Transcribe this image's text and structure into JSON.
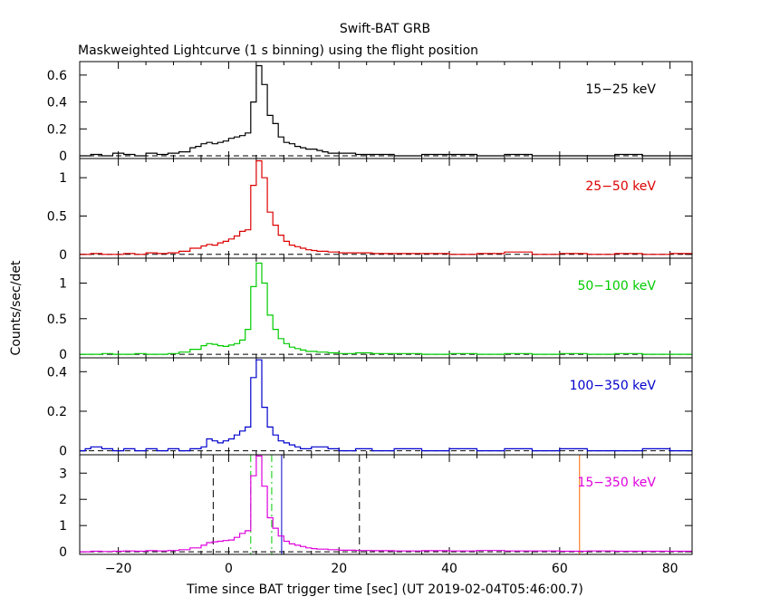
{
  "figure": {
    "title": "Swift-BAT GRB",
    "subtitle": "Maskweighted Lightcurve (1 s binning) using the flight position",
    "xlabel": "Time since BAT trigger time [sec] (UT 2019-02-04T05:46:00.7)",
    "ylabel": "Counts/sec/det"
  },
  "chart_data": [
    {
      "type": "line",
      "name": "15-25 keV",
      "label": "15−25 keV",
      "color": "#000000",
      "xlim": [
        -27,
        84
      ],
      "ylim": [
        -0.02,
        0.7
      ],
      "yticks": [
        {
          "v": 0,
          "label": "0"
        },
        {
          "v": 0.2,
          "label": "0.2"
        },
        {
          "v": 0.4,
          "label": "0.4"
        },
        {
          "v": 0.6,
          "label": "0.6"
        }
      ],
      "x": [
        -27,
        -25,
        -23,
        -21,
        -19,
        -17,
        -15,
        -13,
        -11,
        -9,
        -7,
        -6,
        -5,
        -4,
        -3,
        -2,
        -1,
        0,
        1,
        2,
        3,
        4,
        5,
        6,
        7,
        8,
        9,
        10,
        11,
        12,
        13,
        14,
        15,
        16,
        17,
        18,
        20,
        23,
        26,
        30,
        35,
        40,
        45,
        50,
        55,
        60,
        65,
        70,
        75,
        80,
        84
      ],
      "y": [
        0.0,
        0.01,
        0.0,
        0.02,
        0.01,
        0.0,
        0.02,
        0.01,
        0.02,
        0.03,
        0.06,
        0.07,
        0.09,
        0.1,
        0.09,
        0.1,
        0.11,
        0.13,
        0.14,
        0.15,
        0.17,
        0.4,
        0.67,
        0.53,
        0.3,
        0.24,
        0.14,
        0.1,
        0.09,
        0.07,
        0.06,
        0.05,
        0.05,
        0.04,
        0.03,
        0.02,
        0.02,
        0.01,
        0.01,
        0.0,
        0.01,
        0.01,
        0.0,
        0.01,
        0.0,
        0.0,
        0.0,
        0.01,
        0.0,
        0.0,
        0.0
      ]
    },
    {
      "type": "line",
      "name": "25-50 keV",
      "label": "25−50 keV",
      "color": "#dd0000",
      "xlim": [
        -27,
        84
      ],
      "ylim": [
        -0.05,
        1.25
      ],
      "yticks": [
        {
          "v": 0,
          "label": "0"
        },
        {
          "v": 0.5,
          "label": "0.5"
        },
        {
          "v": 1,
          "label": "1"
        }
      ],
      "x": [
        -27,
        -25,
        -23,
        -21,
        -19,
        -17,
        -15,
        -13,
        -11,
        -9,
        -7,
        -5,
        -4,
        -3,
        -2,
        -1,
        0,
        1,
        2,
        3,
        4,
        5,
        6,
        7,
        8,
        9,
        10,
        11,
        12,
        13,
        14,
        15,
        16,
        18,
        20,
        23,
        26,
        30,
        35,
        40,
        45,
        50,
        55,
        60,
        65,
        70,
        75,
        80,
        84
      ],
      "y": [
        0.0,
        0.01,
        0.0,
        0.0,
        0.01,
        0.0,
        0.02,
        0.01,
        0.02,
        0.04,
        0.08,
        0.11,
        0.13,
        0.12,
        0.15,
        0.17,
        0.2,
        0.24,
        0.3,
        0.32,
        0.9,
        1.22,
        1.0,
        0.55,
        0.38,
        0.25,
        0.17,
        0.12,
        0.1,
        0.08,
        0.06,
        0.05,
        0.04,
        0.03,
        0.02,
        0.02,
        0.01,
        0.01,
        0.01,
        0.0,
        0.01,
        0.03,
        0.0,
        0.01,
        0.0,
        0.01,
        0.0,
        0.01,
        0.0
      ]
    },
    {
      "type": "line",
      "name": "50-100 keV",
      "label": "50−100 keV",
      "color": "#00cc00",
      "xlim": [
        -27,
        84
      ],
      "ylim": [
        -0.05,
        1.35
      ],
      "yticks": [
        {
          "v": 0,
          "label": "0"
        },
        {
          "v": 0.5,
          "label": "0.5"
        },
        {
          "v": 1,
          "label": "1"
        }
      ],
      "x": [
        -27,
        -25,
        -23,
        -21,
        -19,
        -17,
        -15,
        -13,
        -11,
        -9,
        -7,
        -5,
        -4,
        -3,
        -2,
        -1,
        0,
        1,
        2,
        3,
        4,
        5,
        6,
        7,
        8,
        9,
        10,
        11,
        12,
        13,
        14,
        16,
        18,
        20,
        23,
        26,
        30,
        35,
        40,
        45,
        50,
        55,
        60,
        65,
        70,
        75,
        80,
        84
      ],
      "y": [
        0.0,
        0.0,
        0.01,
        0.0,
        0.0,
        0.01,
        0.0,
        0.0,
        0.01,
        0.03,
        0.07,
        0.12,
        0.15,
        0.14,
        0.12,
        0.11,
        0.13,
        0.15,
        0.2,
        0.35,
        0.95,
        1.28,
        1.0,
        0.55,
        0.35,
        0.22,
        0.15,
        0.1,
        0.08,
        0.06,
        0.04,
        0.03,
        0.02,
        0.01,
        0.02,
        0.01,
        0.01,
        0.0,
        0.01,
        0.0,
        0.01,
        0.0,
        0.01,
        0.0,
        0.01,
        0.0,
        0.0,
        0.0
      ]
    },
    {
      "type": "line",
      "name": "100-350 keV",
      "label": "100−350 keV",
      "color": "#0000cc",
      "xlim": [
        -27,
        84
      ],
      "ylim": [
        -0.02,
        0.47
      ],
      "yticks": [
        {
          "v": 0,
          "label": "0"
        },
        {
          "v": 0.2,
          "label": "0.2"
        },
        {
          "v": 0.4,
          "label": "0.4"
        }
      ],
      "x": [
        -27,
        -26,
        -25,
        -23,
        -21,
        -19,
        -17,
        -15,
        -13,
        -11,
        -9,
        -7,
        -5,
        -4,
        -3,
        -2,
        -1,
        0,
        1,
        2,
        3,
        4,
        5,
        6,
        7,
        8,
        9,
        10,
        11,
        12,
        13,
        15,
        18,
        20,
        23,
        26,
        30,
        35,
        40,
        45,
        50,
        55,
        60,
        65,
        70,
        75,
        80,
        84
      ],
      "y": [
        0.0,
        0.01,
        0.02,
        0.01,
        0.0,
        0.01,
        0.0,
        0.01,
        0.0,
        0.01,
        0.0,
        0.01,
        0.02,
        0.06,
        0.05,
        0.04,
        0.05,
        0.06,
        0.08,
        0.1,
        0.12,
        0.37,
        0.46,
        0.22,
        0.12,
        0.08,
        0.05,
        0.04,
        0.03,
        0.02,
        0.01,
        0.02,
        0.01,
        0.0,
        0.01,
        0.0,
        0.01,
        0.0,
        0.01,
        0.0,
        0.01,
        0.0,
        0.01,
        0.0,
        0.0,
        0.01,
        0.0,
        0.0
      ]
    },
    {
      "type": "line",
      "name": "15-350 keV",
      "label": "15−350 keV",
      "color": "#dd00dd",
      "xlim": [
        -27,
        84
      ],
      "ylim": [
        -0.1,
        3.7
      ],
      "yticks": [
        {
          "v": 0,
          "label": "0"
        },
        {
          "v": 1,
          "label": "1"
        },
        {
          "v": 2,
          "label": "2"
        },
        {
          "v": 3,
          "label": "3"
        }
      ],
      "x": [
        -27,
        -25,
        -23,
        -21,
        -19,
        -17,
        -15,
        -13,
        -11,
        -9,
        -7,
        -5,
        -4,
        -3,
        -2,
        -1,
        0,
        1,
        2,
        3,
        4,
        5,
        6,
        7,
        8,
        9,
        10,
        11,
        12,
        13,
        14,
        15,
        16,
        18,
        20,
        23,
        26,
        30,
        35,
        40,
        45,
        50,
        55,
        60,
        65,
        70,
        75,
        80,
        84
      ],
      "y": [
        0.0,
        0.02,
        0.01,
        0.02,
        0.03,
        0.02,
        0.04,
        0.03,
        0.05,
        0.08,
        0.15,
        0.25,
        0.35,
        0.38,
        0.4,
        0.43,
        0.45,
        0.55,
        0.7,
        0.8,
        2.9,
        3.65,
        2.5,
        1.3,
        0.9,
        0.6,
        0.4,
        0.3,
        0.25,
        0.2,
        0.15,
        0.12,
        0.1,
        0.08,
        0.06,
        0.05,
        0.04,
        0.03,
        0.04,
        0.03,
        0.05,
        0.03,
        0.03,
        0.02,
        0.03,
        0.02,
        0.02,
        0.02,
        0.02
      ],
      "vlines": [
        {
          "x": -2.8,
          "color": "#000000",
          "style": "dashed"
        },
        {
          "x": 23.7,
          "color": "#000000",
          "style": "dashed"
        },
        {
          "x": 4.0,
          "color": "#00cc00",
          "style": "dashdot"
        },
        {
          "x": 7.8,
          "color": "#00cc00",
          "style": "dashdot"
        },
        {
          "x": 9.6,
          "color": "#0000cc",
          "style": "solid"
        },
        {
          "x": 63.6,
          "color": "#ff6600",
          "style": "solid"
        }
      ]
    }
  ],
  "xaxis": {
    "ticks": [
      {
        "v": -20,
        "label": "−20"
      },
      {
        "v": 0,
        "label": "0"
      },
      {
        "v": 20,
        "label": "20"
      },
      {
        "v": 40,
        "label": "40"
      },
      {
        "v": 60,
        "label": "60"
      },
      {
        "v": 80,
        "label": "80"
      }
    ]
  }
}
